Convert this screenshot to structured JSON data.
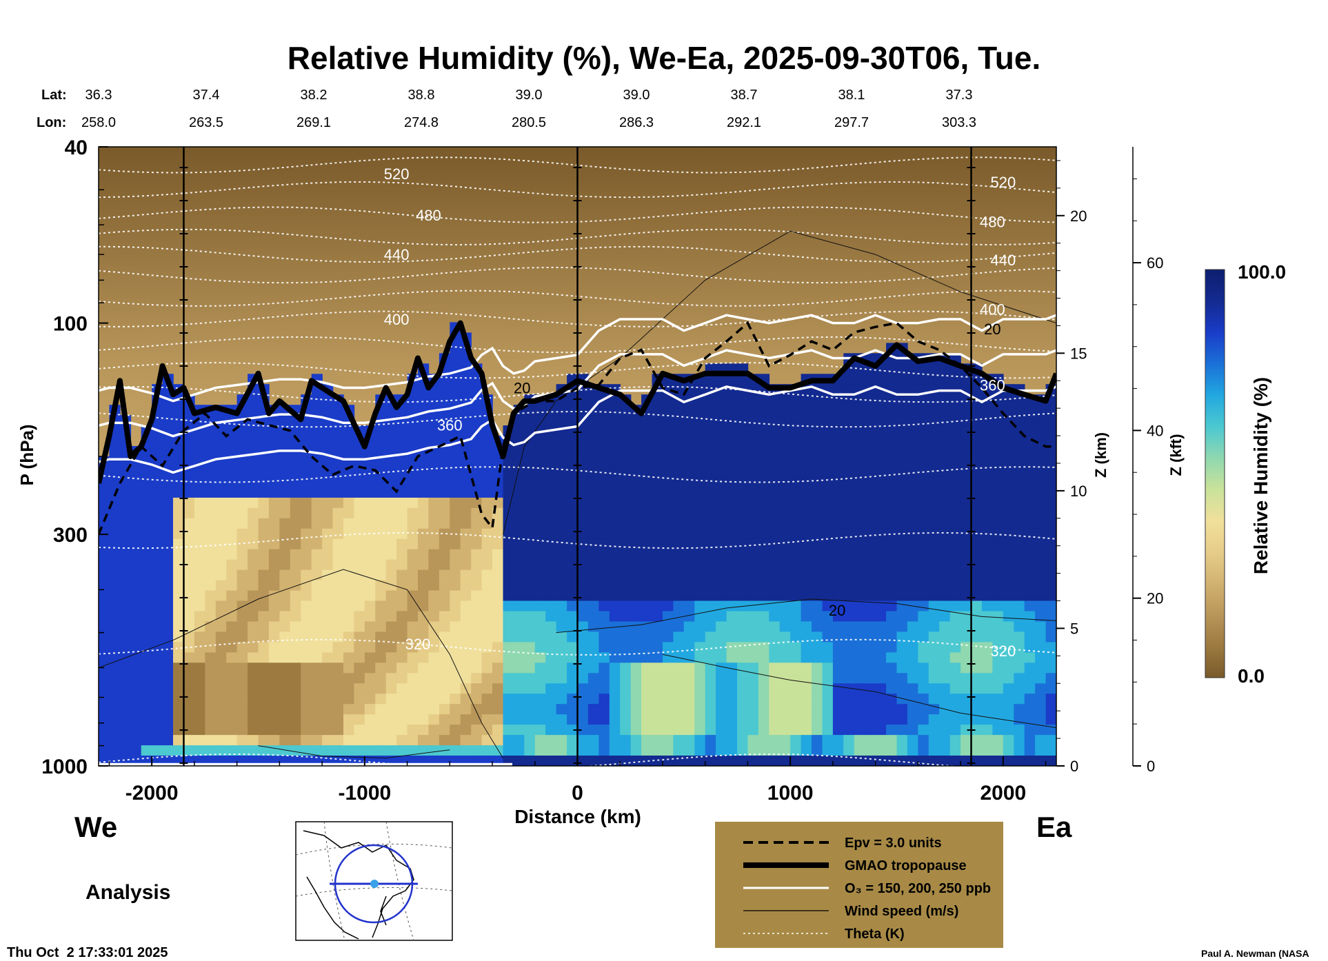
{
  "title": "Relative Humidity (%), We-Ea, 2025-09-30T06, Tue.",
  "header_rows": {
    "lat_label": "Lat:",
    "lon_label": "Lon:",
    "lat": [
      "36.3",
      "37.4",
      "38.2",
      "38.8",
      "39.0",
      "39.0",
      "38.7",
      "38.1",
      "37.3"
    ],
    "lon": [
      "258.0",
      "263.5",
      "269.1",
      "274.8",
      "280.5",
      "286.3",
      "292.1",
      "297.7",
      "303.3"
    ]
  },
  "axes": {
    "ylabel_left": "P (hPa)",
    "xlabel": "Distance (km)",
    "ylabel_z_km": "Z (km)",
    "ylabel_z_kft": "Z (kft)",
    "p_ticks": [
      "40",
      "100",
      "300",
      "1000"
    ],
    "x_ticks": [
      "-2000",
      "-1000",
      "0",
      "1000",
      "2000"
    ],
    "z_km_ticks": [
      "0",
      "5",
      "10",
      "15",
      "20"
    ],
    "z_kft_ticks": [
      "0",
      "20",
      "40",
      "60"
    ]
  },
  "direction_labels": {
    "west": "We",
    "east": "Ea"
  },
  "analysis_label": "Analysis",
  "timestamp": "Thu Oct  2 17:33:01 2025",
  "credit": "Paul A. Newman (NASA",
  "colorbar": {
    "label": "Relative Humidity (%)",
    "max_label": "100.0",
    "min_label": "0.0",
    "colors": [
      "#7a5a2a",
      "#9c7a40",
      "#b8965a",
      "#d2b270",
      "#e6cd88",
      "#f0e09c",
      "#c9e29a",
      "#8fd8b0",
      "#4cc8d0",
      "#22a8e0",
      "#1a70d8",
      "#1a3cc8",
      "#132a90",
      "#0e1f70"
    ]
  },
  "legend": {
    "items": [
      {
        "label": "Epv = 3.0 units",
        "style": "dashed-black"
      },
      {
        "label": "GMAO tropopause",
        "style": "thick-black"
      },
      {
        "label": "O₃ = 150, 200, 250 ppb",
        "style": "white"
      },
      {
        "label": "Wind speed (m/s)",
        "style": "thin-black"
      },
      {
        "label": "Theta (K)",
        "style": "dotted-white"
      }
    ],
    "bg_color": "#a88a46"
  },
  "chart_data": {
    "type": "heatmap",
    "title": "Relative Humidity (%), We-Ea, 2025-09-30T06, Tue.",
    "xlabel": "Distance (km)",
    "ylabel": "P (hPa)",
    "xlim": [
      -2250,
      2250
    ],
    "ylim": [
      1000,
      40
    ],
    "y_scale": "log",
    "z_km_range": [
      0,
      22.5
    ],
    "colorbar_range": [
      0.0,
      100.0
    ],
    "theta_labels": [
      {
        "value": "520",
        "x": -850,
        "p": 46
      },
      {
        "value": "480",
        "x": -700,
        "p": 57
      },
      {
        "value": "440",
        "x": -850,
        "p": 70
      },
      {
        "value": "400",
        "x": -850,
        "p": 98
      },
      {
        "value": "360",
        "x": -600,
        "p": 170
      },
      {
        "value": "320",
        "x": -750,
        "p": 530
      },
      {
        "value": "520",
        "x": 2000,
        "p": 48
      },
      {
        "value": "480",
        "x": 1950,
        "p": 59
      },
      {
        "value": "440",
        "x": 2000,
        "p": 72
      },
      {
        "value": "400",
        "x": 1950,
        "p": 93
      },
      {
        "value": "360",
        "x": 1950,
        "p": 138
      },
      {
        "value": "320",
        "x": 2000,
        "p": 550
      }
    ],
    "wind_labels": [
      {
        "value": "20",
        "x": -260,
        "p": 140
      },
      {
        "value": "20",
        "x": 1950,
        "p": 103
      },
      {
        "value": "20",
        "x": 1220,
        "p": 445
      }
    ],
    "tropopause": {
      "x": [
        -2250,
        -2200,
        -2150,
        -2100,
        -2050,
        -2000,
        -1950,
        -1900,
        -1850,
        -1800,
        -1700,
        -1600,
        -1500,
        -1450,
        -1400,
        -1300,
        -1250,
        -1150,
        -1100,
        -1000,
        -950,
        -900,
        -850,
        -800,
        -750,
        -700,
        -650,
        -600,
        -550,
        -500,
        -450,
        -400,
        -350,
        -300,
        -250,
        -200,
        -100,
        0,
        100,
        200,
        300,
        400,
        500,
        600,
        700,
        800,
        900,
        1000,
        1100,
        1200,
        1300,
        1400,
        1500,
        1600,
        1700,
        1800,
        1900,
        2000,
        2100,
        2200,
        2250
      ],
      "p": [
        230,
        180,
        135,
        200,
        190,
        165,
        125,
        145,
        140,
        160,
        155,
        160,
        130,
        160,
        150,
        165,
        135,
        145,
        150,
        190,
        160,
        140,
        155,
        145,
        120,
        140,
        130,
        110,
        100,
        120,
        130,
        170,
        200,
        160,
        150,
        150,
        145,
        135,
        140,
        145,
        160,
        130,
        135,
        130,
        130,
        130,
        140,
        140,
        135,
        135,
        120,
        125,
        112,
        122,
        120,
        125,
        130,
        140,
        145,
        150,
        130
      ],
      "unit": "hPa"
    },
    "ozone_250ppb": {
      "x": [
        -2250,
        -2200,
        -2100,
        -2000,
        -1900,
        -1800,
        -1700,
        -1600,
        -1500,
        -1400,
        -1300,
        -1200,
        -1100,
        -1000,
        -900,
        -800,
        -700,
        -600,
        -550,
        -500,
        -450,
        -400,
        -350,
        -300,
        -250,
        -200,
        -100,
        0,
        100,
        200,
        300,
        400,
        500,
        600,
        700,
        800,
        900,
        1000,
        1100,
        1200,
        1300,
        1400,
        1500,
        1600,
        1700,
        1800,
        1900,
        2000,
        2100,
        2200,
        2250
      ],
      "p": [
        142,
        140,
        140,
        144,
        150,
        145,
        140,
        138,
        136,
        134,
        134,
        136,
        140,
        140,
        138,
        136,
        132,
        130,
        128,
        126,
        118,
        114,
        125,
        130,
        128,
        122,
        120,
        118,
        104,
        98,
        98,
        98,
        104,
        100,
        96,
        98,
        100,
        98,
        96,
        100,
        100,
        96,
        100,
        100,
        98,
        98,
        104,
        98,
        98,
        98,
        96
      ],
      "unit": "hPa"
    },
    "epv_3": {
      "x": [
        -2250,
        -2150,
        -2050,
        -1950,
        -1850,
        -1750,
        -1650,
        -1550,
        -1450,
        -1350,
        -1250,
        -1150,
        -1050,
        -950,
        -850,
        -750,
        -650,
        -550,
        -450,
        -400,
        -350,
        -300,
        -200,
        -100,
        0,
        100,
        200,
        300,
        400,
        500,
        600,
        700,
        800,
        900,
        1000,
        1100,
        1200,
        1300,
        1400,
        1500,
        1600,
        1700,
        1800,
        1900,
        2000,
        2100,
        2200,
        2250
      ],
      "p": [
        300,
        230,
        190,
        210,
        175,
        160,
        180,
        165,
        170,
        175,
        200,
        220,
        210,
        215,
        240,
        200,
        190,
        180,
        270,
        290,
        190,
        160,
        150,
        150,
        140,
        138,
        120,
        115,
        140,
        145,
        120,
        110,
        100,
        125,
        118,
        110,
        115,
        105,
        102,
        100,
        110,
        115,
        125,
        140,
        160,
        180,
        190,
        190
      ],
      "unit": "hPa"
    }
  }
}
